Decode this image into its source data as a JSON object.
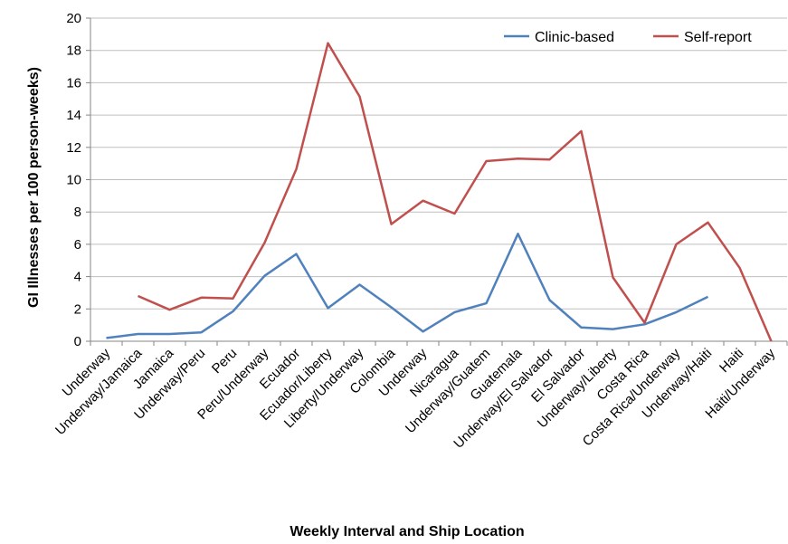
{
  "chart_data": {
    "type": "line",
    "title": "",
    "xlabel": "Weekly Interval and Ship Location",
    "ylabel": "GI Illnesses per 100 person-weeks)",
    "ylim": [
      0,
      20
    ],
    "yticks": [
      0,
      2,
      4,
      6,
      8,
      10,
      12,
      14,
      16,
      18,
      20
    ],
    "grid": true,
    "legend_position": "top-right",
    "categories": [
      "Underway",
      "Underway/Jamaica",
      "Jamaica",
      "Underway/Peru",
      "Peru",
      "Peru/Underway",
      "Ecuador",
      "Ecuador/Liberty",
      "Liberty/Underway",
      "Colombia",
      "Underway",
      "Nicaragua",
      "Underway/Guatem",
      "Guatemala",
      "Underway/El Salvador",
      "El Salvador",
      "Underway/Liberty",
      "Costa Rica",
      "Costa Rica/Underway",
      "Underway/Haiti",
      "Haiti",
      "Haiti/Underway"
    ],
    "series": [
      {
        "name": "Clinic-based",
        "color": "#4f81bd",
        "values": [
          0.2,
          0.45,
          0.45,
          0.55,
          1.85,
          4.05,
          5.4,
          2.05,
          3.5,
          2.1,
          0.6,
          1.8,
          2.35,
          6.65,
          2.55,
          0.85,
          0.75,
          1.05,
          1.8,
          2.75,
          null,
          null
        ]
      },
      {
        "name": "Self-report",
        "color": "#c0504d",
        "values": [
          null,
          2.8,
          1.95,
          2.7,
          2.65,
          6.1,
          10.65,
          18.45,
          15.15,
          7.25,
          8.7,
          7.9,
          11.15,
          11.3,
          11.25,
          13.0,
          3.95,
          1.15,
          6.0,
          7.35,
          4.55,
          0.0
        ]
      }
    ]
  }
}
